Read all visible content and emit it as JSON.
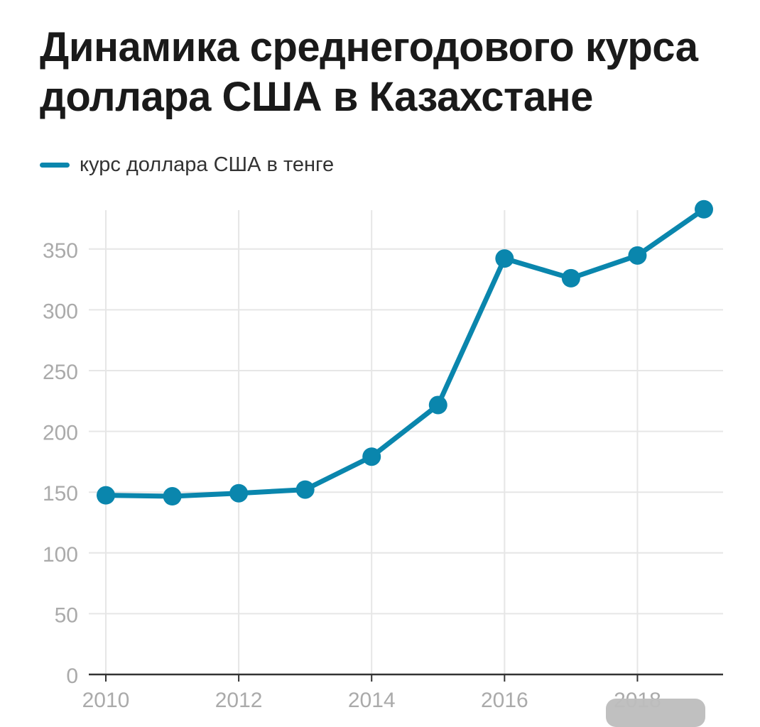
{
  "chart_data": {
    "type": "line",
    "title": "Динамика среднегодового курса доллара США в Казахстане",
    "xlabel": "",
    "ylabel": "",
    "x": [
      2010,
      2011,
      2012,
      2013,
      2014,
      2015,
      2016,
      2017,
      2018,
      2019
    ],
    "x_ticks": [
      "2010",
      "2012",
      "2014",
      "2016",
      "2018"
    ],
    "xlim": [
      2010,
      2019.3
    ],
    "y_ticks": [
      "0",
      "50",
      "100",
      "150",
      "200",
      "250",
      "300",
      "350"
    ],
    "ylim": [
      0,
      382
    ],
    "grid": true,
    "legend_position": "top-left",
    "series": [
      {
        "name": "курс доллара США в тенге",
        "color": "#0a86ad",
        "values": [
          147.4,
          146.6,
          149.1,
          152.1,
          179.2,
          221.7,
          342.2,
          326.0,
          344.7,
          382.7
        ]
      }
    ]
  }
}
